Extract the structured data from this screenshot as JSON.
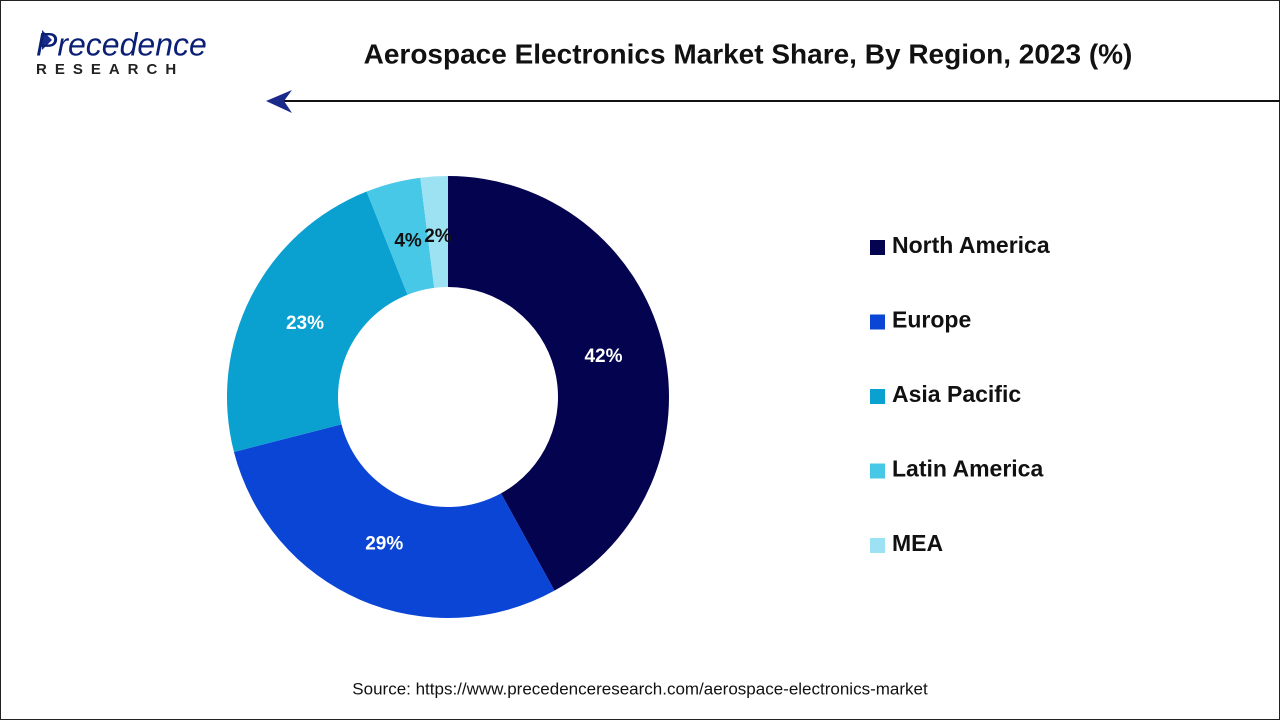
{
  "logo": {
    "name": "Precedence",
    "sub": "RESEARCH"
  },
  "chart_data": {
    "type": "donut",
    "title": "Aerospace Electronics Market Share, By Region, 2023 (%)",
    "categories": [
      "North America",
      "Europe",
      "Asia Pacific",
      "Latin America",
      "MEA"
    ],
    "values": [
      42,
      29,
      23,
      4,
      2
    ],
    "value_labels": [
      "42%",
      "29%",
      "23%",
      "4%",
      "2%"
    ],
    "colors": [
      "#03034f",
      "#0a45d6",
      "#0aa0d0",
      "#47c8e6",
      "#9de2f2"
    ],
    "legend": "right",
    "source": "Source: https://www.precedenceresearch.com/aerospace-electronics-market"
  }
}
